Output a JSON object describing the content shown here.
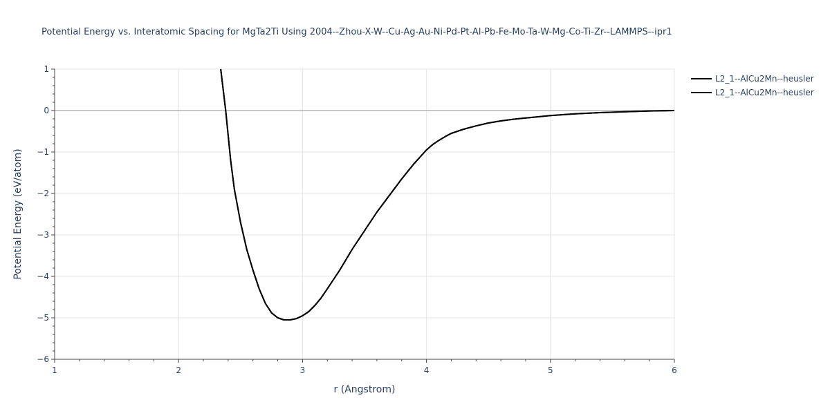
{
  "chart_data": {
    "type": "line",
    "title": "Potential Energy vs. Interatomic Spacing for MgTa2Ti Using 2004--Zhou-X-W--Cu-Ag-Au-Ni-Pd-Pt-Al-Pb-Fe-Mo-Ta-W-Mg-Co-Ti-Zr--LAMMPS--ipr1",
    "xlabel": "r (Angstrom)",
    "ylabel": "Potential Energy (eV/atom)",
    "xlim": [
      1,
      6
    ],
    "ylim": [
      -6,
      1
    ],
    "xticks": [
      1,
      2,
      3,
      4,
      5,
      6
    ],
    "xtick_labels": [
      "1",
      "2",
      "3",
      "4",
      "5",
      "6"
    ],
    "yticks": [
      1,
      0,
      -1,
      -2,
      -3,
      -4,
      -5,
      -6
    ],
    "ytick_labels": [
      "1",
      "0",
      "−1",
      "−2",
      "−3",
      "−4",
      "−5",
      "−6"
    ],
    "grid": true,
    "legend_position": "top-right",
    "series": [
      {
        "name": "L2_1--AlCu2Mn--heusler",
        "color": "#000000",
        "x": [
          2.34,
          2.36,
          2.38,
          2.4,
          2.42,
          2.45,
          2.5,
          2.55,
          2.6,
          2.65,
          2.7,
          2.75,
          2.8,
          2.85,
          2.9,
          2.95,
          3.0,
          3.05,
          3.1,
          3.15,
          3.2,
          3.3,
          3.4,
          3.5,
          3.6,
          3.7,
          3.8,
          3.9,
          4.0,
          4.05,
          4.1,
          4.15,
          4.2,
          4.3,
          4.4,
          4.5,
          4.6,
          4.7,
          4.8,
          5.0,
          5.2,
          5.4,
          5.6,
          5.8,
          6.0
        ],
        "y": [
          1.0,
          0.5,
          0.0,
          -0.6,
          -1.2,
          -1.9,
          -2.7,
          -3.35,
          -3.85,
          -4.3,
          -4.65,
          -4.88,
          -5.0,
          -5.05,
          -5.05,
          -5.02,
          -4.95,
          -4.85,
          -4.7,
          -4.52,
          -4.3,
          -3.85,
          -3.35,
          -2.9,
          -2.45,
          -2.05,
          -1.65,
          -1.28,
          -0.95,
          -0.82,
          -0.72,
          -0.63,
          -0.55,
          -0.45,
          -0.37,
          -0.3,
          -0.25,
          -0.21,
          -0.18,
          -0.12,
          -0.08,
          -0.05,
          -0.03,
          -0.01,
          0.0
        ]
      },
      {
        "name": "L2_1--AlCu2Mn--heusler",
        "color": "#000000",
        "x": [
          2.34,
          2.36,
          2.38,
          2.4,
          2.42,
          2.45,
          2.5,
          2.55,
          2.6,
          2.65,
          2.7,
          2.75,
          2.8,
          2.85,
          2.9,
          2.95,
          3.0,
          3.05,
          3.1,
          3.15,
          3.2,
          3.3,
          3.4,
          3.5,
          3.6,
          3.7,
          3.8,
          3.9,
          4.0,
          4.05,
          4.1,
          4.15,
          4.2,
          4.3,
          4.4,
          4.5,
          4.6,
          4.7,
          4.8,
          5.0,
          5.2,
          5.4,
          5.6,
          5.8,
          6.0
        ],
        "y": [
          1.0,
          0.5,
          0.0,
          -0.6,
          -1.2,
          -1.9,
          -2.7,
          -3.35,
          -3.85,
          -4.3,
          -4.65,
          -4.88,
          -5.0,
          -5.05,
          -5.05,
          -5.02,
          -4.95,
          -4.85,
          -4.7,
          -4.52,
          -4.3,
          -3.85,
          -3.35,
          -2.9,
          -2.45,
          -2.05,
          -1.65,
          -1.28,
          -0.95,
          -0.82,
          -0.72,
          -0.63,
          -0.55,
          -0.45,
          -0.37,
          -0.3,
          -0.25,
          -0.21,
          -0.18,
          -0.12,
          -0.08,
          -0.05,
          -0.03,
          -0.01,
          0.0
        ]
      }
    ]
  }
}
